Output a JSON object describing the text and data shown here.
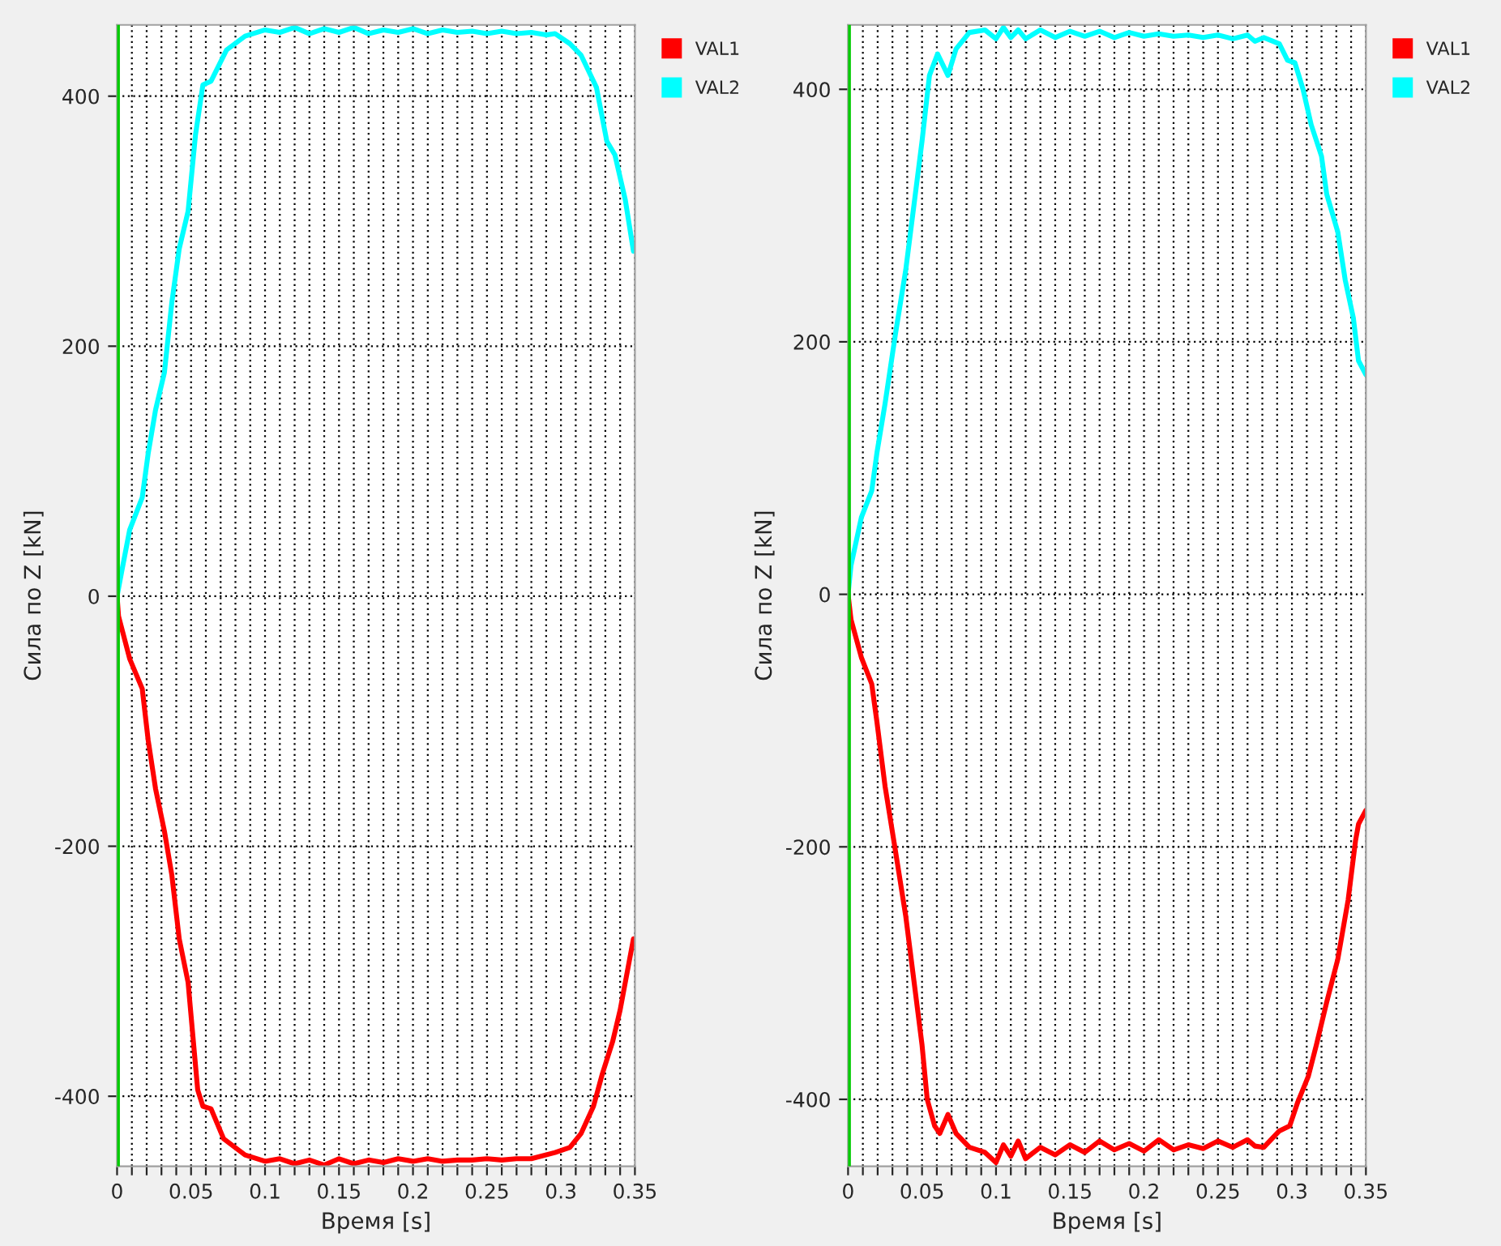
{
  "chart_data": [
    {
      "type": "line",
      "xlabel": "Время [s]",
      "ylabel": "Сила по Z [kN]",
      "xlim": [
        0,
        0.35
      ],
      "ylim": [
        -456,
        457
      ],
      "xticks": [
        0,
        {
          "value": 0.01,
          "label": null
        },
        {
          "value": 0.02,
          "label": null
        },
        {
          "value": 0.03,
          "label": null
        },
        {
          "value": 0.04,
          "label": null
        },
        0.05,
        {
          "value": 0.06,
          "label": null
        },
        {
          "value": 0.07,
          "label": null
        },
        {
          "value": 0.08,
          "label": null
        },
        {
          "value": 0.09,
          "label": null
        },
        0.1,
        {
          "value": 0.11,
          "label": null
        },
        {
          "value": 0.12,
          "label": null
        },
        {
          "value": 0.13,
          "label": null
        },
        {
          "value": 0.14,
          "label": null
        },
        0.15,
        {
          "value": 0.16,
          "label": null
        },
        {
          "value": 0.17,
          "label": null
        },
        {
          "value": 0.18,
          "label": null
        },
        {
          "value": 0.19,
          "label": null
        },
        0.2,
        {
          "value": 0.21,
          "label": null
        },
        {
          "value": 0.22,
          "label": null
        },
        {
          "value": 0.23,
          "label": null
        },
        {
          "value": 0.24,
          "label": null
        },
        0.25,
        {
          "value": 0.26,
          "label": null
        },
        {
          "value": 0.27,
          "label": null
        },
        {
          "value": 0.28,
          "label": null
        },
        {
          "value": 0.29,
          "label": null
        },
        0.3,
        {
          "value": 0.31,
          "label": null
        },
        {
          "value": 0.32,
          "label": null
        },
        {
          "value": 0.33,
          "label": null
        },
        {
          "value": 0.34,
          "label": null
        },
        0.35
      ],
      "yticks": [
        -400,
        -200,
        0,
        200,
        400
      ],
      "grid": true,
      "legend": "top right",
      "marker": "none",
      "line_style": "solid",
      "ref_lines": [
        {
          "axis": "x",
          "value": 0,
          "color": "#00cc00"
        }
      ],
      "series": [
        {
          "name": "VAL1",
          "color": "#ff0000",
          "x": [
            0,
            0.001,
            0.0085,
            0.017,
            0.021,
            0.026,
            0.032,
            0.037,
            0.042,
            0.048,
            0.0545,
            0.058,
            0.0635,
            0.072,
            0.0865,
            0.1,
            0.11,
            0.12,
            0.13,
            0.14,
            0.15,
            0.16,
            0.17,
            0.18,
            0.19,
            0.2,
            0.21,
            0.22,
            0.23,
            0.24,
            0.25,
            0.26,
            0.27,
            0.28,
            0.296,
            0.306,
            0.3135,
            0.322,
            0.328,
            0.335,
            0.34,
            0.349
          ],
          "values": [
            0,
            -16,
            -50,
            -74,
            -115,
            -154,
            -188,
            -223,
            -274,
            -309,
            -395,
            -408,
            -410,
            -434,
            -447,
            -452,
            -450,
            -454,
            -451,
            -455,
            -450,
            -454,
            -451,
            -453,
            -450,
            -452,
            -450,
            -452,
            -451,
            -451,
            -450,
            -451,
            -450,
            -450,
            -445,
            -441,
            -430,
            -408,
            -382,
            -356,
            -331,
            -274
          ]
        },
        {
          "name": "VAL2",
          "color": "#00ffff",
          "x": [
            0,
            0.003,
            0.0085,
            0.017,
            0.021,
            0.026,
            0.032,
            0.037,
            0.042,
            0.048,
            0.053,
            0.058,
            0.0635,
            0.074,
            0.0865,
            0.1,
            0.11,
            0.12,
            0.13,
            0.14,
            0.15,
            0.16,
            0.17,
            0.18,
            0.19,
            0.2,
            0.21,
            0.22,
            0.23,
            0.24,
            0.25,
            0.26,
            0.27,
            0.28,
            0.29,
            0.296,
            0.306,
            0.3135,
            0.324,
            0.331,
            0.3365,
            0.3435,
            0.349
          ],
          "values": [
            0,
            19,
            53,
            79,
            114,
            149,
            179,
            235,
            278,
            308,
            369,
            409,
            412,
            437,
            448,
            453,
            451,
            455,
            450,
            454,
            451,
            455,
            450,
            453,
            451,
            454,
            450,
            453,
            451,
            452,
            450,
            452,
            450,
            451,
            449,
            450,
            442,
            433,
            407,
            364,
            353,
            317,
            276
          ]
        }
      ]
    },
    {
      "type": "line",
      "xlabel": "Время [s]",
      "ylabel": "Сила по Z [kN]",
      "xlim": [
        0,
        0.35
      ],
      "ylim": [
        -453,
        451
      ],
      "xticks": [
        0,
        {
          "value": 0.01,
          "label": null
        },
        {
          "value": 0.02,
          "label": null
        },
        {
          "value": 0.03,
          "label": null
        },
        {
          "value": 0.04,
          "label": null
        },
        0.05,
        {
          "value": 0.06,
          "label": null
        },
        {
          "value": 0.07,
          "label": null
        },
        {
          "value": 0.08,
          "label": null
        },
        {
          "value": 0.09,
          "label": null
        },
        0.1,
        {
          "value": 0.11,
          "label": null
        },
        {
          "value": 0.12,
          "label": null
        },
        {
          "value": 0.13,
          "label": null
        },
        {
          "value": 0.14,
          "label": null
        },
        0.15,
        {
          "value": 0.16,
          "label": null
        },
        {
          "value": 0.17,
          "label": null
        },
        {
          "value": 0.18,
          "label": null
        },
        {
          "value": 0.19,
          "label": null
        },
        0.2,
        {
          "value": 0.21,
          "label": null
        },
        {
          "value": 0.22,
          "label": null
        },
        {
          "value": 0.23,
          "label": null
        },
        {
          "value": 0.24,
          "label": null
        },
        0.25,
        {
          "value": 0.26,
          "label": null
        },
        {
          "value": 0.27,
          "label": null
        },
        {
          "value": 0.28,
          "label": null
        },
        {
          "value": 0.29,
          "label": null
        },
        0.3,
        {
          "value": 0.31,
          "label": null
        },
        {
          "value": 0.32,
          "label": null
        },
        {
          "value": 0.33,
          "label": null
        },
        {
          "value": 0.34,
          "label": null
        },
        0.35
      ],
      "yticks": [
        -400,
        -200,
        0,
        200,
        400
      ],
      "grid": true,
      "legend": "top right",
      "marker": "none",
      "line_style": "solid",
      "ref_lines": [
        {
          "axis": "x",
          "value": 0,
          "color": "#00cc00"
        }
      ],
      "series": [
        {
          "name": "VAL1",
          "color": "#ff0000",
          "x": [
            0,
            0.002,
            0.009,
            0.016,
            0.0195,
            0.025,
            0.032,
            0.039,
            0.0445,
            0.05,
            0.0535,
            0.0585,
            0.062,
            0.0675,
            0.073,
            0.082,
            0.0925,
            0.1,
            0.105,
            0.11,
            0.115,
            0.12,
            0.13,
            0.14,
            0.15,
            0.16,
            0.17,
            0.18,
            0.19,
            0.2,
            0.21,
            0.22,
            0.23,
            0.24,
            0.25,
            0.26,
            0.27,
            0.275,
            0.281,
            0.2915,
            0.2985,
            0.304,
            0.311,
            0.3165,
            0.3235,
            0.331,
            0.338,
            0.343,
            0.345,
            0.35
          ],
          "values": [
            0,
            -20,
            -50,
            -71,
            -101,
            -152,
            -203,
            -255,
            -306,
            -357,
            -400,
            -421,
            -427,
            -412,
            -427,
            -438,
            -442,
            -450,
            -436,
            -445,
            -433,
            -447,
            -438,
            -444,
            -436,
            -442,
            -433,
            -440,
            -435,
            -441,
            -432,
            -440,
            -436,
            -439,
            -433,
            -438,
            -432,
            -437,
            -438,
            -425,
            -421,
            -402,
            -382,
            -357,
            -323,
            -289,
            -242,
            -195,
            -182,
            -171
          ]
        },
        {
          "name": "VAL2",
          "color": "#00ffff",
          "x": [
            0,
            0.002,
            0.009,
            0.016,
            0.0195,
            0.025,
            0.032,
            0.039,
            0.0445,
            0.05,
            0.055,
            0.0605,
            0.0675,
            0.073,
            0.082,
            0.0925,
            0.1,
            0.105,
            0.11,
            0.115,
            0.12,
            0.13,
            0.14,
            0.15,
            0.16,
            0.17,
            0.18,
            0.19,
            0.2,
            0.21,
            0.22,
            0.23,
            0.24,
            0.25,
            0.26,
            0.27,
            0.275,
            0.281,
            0.2915,
            0.297,
            0.302,
            0.3075,
            0.313,
            0.32,
            0.3235,
            0.331,
            0.336,
            0.3415,
            0.345,
            0.35
          ],
          "values": [
            0,
            23,
            61,
            82,
            112,
            151,
            206,
            257,
            308,
            359,
            411,
            428,
            411,
            432,
            445,
            447,
            440,
            449,
            441,
            447,
            440,
            447,
            441,
            446,
            442,
            446,
            441,
            445,
            442,
            444,
            442,
            443,
            441,
            443,
            440,
            443,
            438,
            441,
            436,
            423,
            421,
            400,
            372,
            347,
            317,
            287,
            249,
            219,
            185,
            174
          ]
        }
      ]
    }
  ]
}
